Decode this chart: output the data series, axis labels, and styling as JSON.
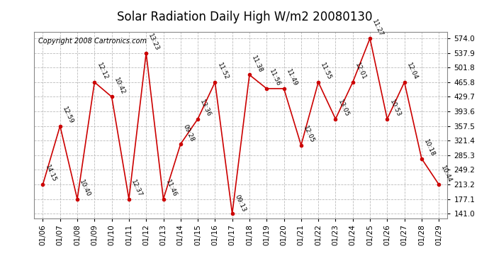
{
  "title": "Solar Radiation Daily High W/m2 20080130",
  "copyright": "Copyright 2008 Cartronics.com",
  "dates": [
    "01/06",
    "01/07",
    "01/08",
    "01/09",
    "01/10",
    "01/11",
    "01/12",
    "01/13",
    "01/14",
    "01/15",
    "01/16",
    "01/17",
    "01/18",
    "01/19",
    "01/20",
    "01/21",
    "01/22",
    "01/23",
    "01/24",
    "01/25",
    "01/26",
    "01/27",
    "01/28",
    "01/29"
  ],
  "values": [
    213.2,
    357.5,
    177.1,
    465.8,
    429.7,
    177.1,
    537.9,
    177.1,
    313.0,
    375.0,
    465.8,
    141.0,
    484.0,
    450.0,
    450.0,
    310.0,
    465.8,
    375.0,
    465.8,
    574.0,
    375.0,
    465.8,
    277.0,
    213.2
  ],
  "labels": [
    "14:15",
    "12:59",
    "10:40",
    "12:12",
    "10:42",
    "12:37",
    "13:23",
    "11:46",
    "09:28",
    "13:36",
    "11:52",
    "09:13",
    "11:38",
    "11:56",
    "11:49",
    "12:05",
    "11:55",
    "13:05",
    "12:01",
    "11:27",
    "10:53",
    "12:04",
    "10:18",
    "10:44"
  ],
  "line_color": "#cc0000",
  "marker_color": "#cc0000",
  "bg_color": "#ffffff",
  "grid_color": "#bbbbbb",
  "yticks": [
    141.0,
    177.1,
    213.2,
    249.2,
    285.3,
    321.4,
    357.5,
    393.6,
    429.7,
    465.8,
    501.8,
    537.9,
    574.0
  ],
  "ylim": [
    130,
    590
  ],
  "title_fontsize": 12,
  "label_fontsize": 6.5,
  "copyright_fontsize": 7,
  "tick_fontsize": 7.5
}
